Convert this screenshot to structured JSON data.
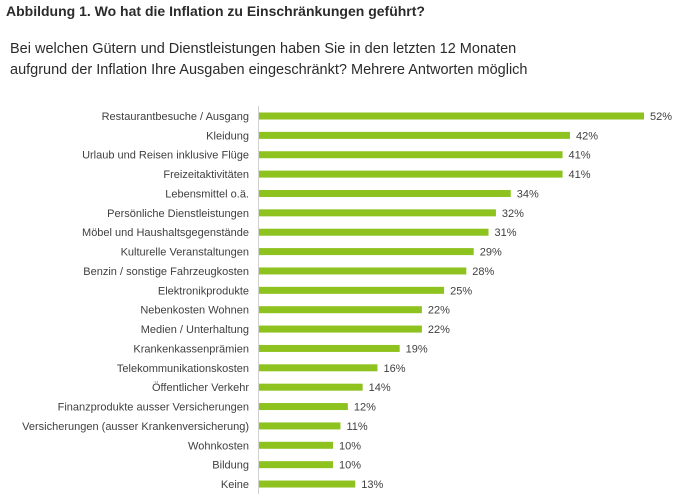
{
  "header": {
    "title": "Abbildung 1. Wo hat die Inflation zu Einschränkungen geführt?",
    "subtitle": "Bei welchen Gütern und Dienstleistungen haben Sie in den letzten 12 Monaten aufgrund der Inflation Ihre Ausgaben eingeschränkt? Mehrere Antworten möglich"
  },
  "chart_data": {
    "type": "bar",
    "orientation": "horizontal",
    "title": "",
    "xlabel": "",
    "ylabel": "",
    "xlim": [
      0,
      52
    ],
    "grid": false,
    "legend": "none",
    "bar_color": "#8dc21f",
    "value_suffix": "%",
    "categories": [
      "Restaurantbesuche / Ausgang",
      "Kleidung",
      "Urlaub und Reisen inklusive Flüge",
      "Freizeitaktivitäten",
      "Lebensmittel o.ä.",
      "Persönliche Dienstleistungen",
      "Möbel und Haushaltsgegenstände",
      "Kulturelle Veranstaltungen",
      "Benzin / sonstige Fahrzeugkosten",
      "Elektronikprodukte",
      "Nebenkosten Wohnen",
      "Medien / Unterhaltung",
      "Krankenkassenprämien",
      "Telekommunikationskosten",
      "Öffentlicher Verkehr",
      "Finanzprodukte ausser Versicherungen",
      "Versicherungen (ausser Krankenversicherung)",
      "Wohnkosten",
      "Bildung",
      "Keine"
    ],
    "values": [
      52,
      42,
      41,
      41,
      34,
      32,
      31,
      29,
      28,
      25,
      22,
      22,
      19,
      16,
      14,
      12,
      11,
      10,
      10,
      13
    ],
    "value_labels": [
      "52%",
      "42%",
      "41%",
      "41%",
      "34%",
      "32%",
      "31%",
      "29%",
      "28%",
      "25%",
      "22%",
      "22%",
      "19%",
      "16%",
      "14%",
      "12%",
      "11%",
      "10%",
      "10%",
      "13%"
    ]
  }
}
